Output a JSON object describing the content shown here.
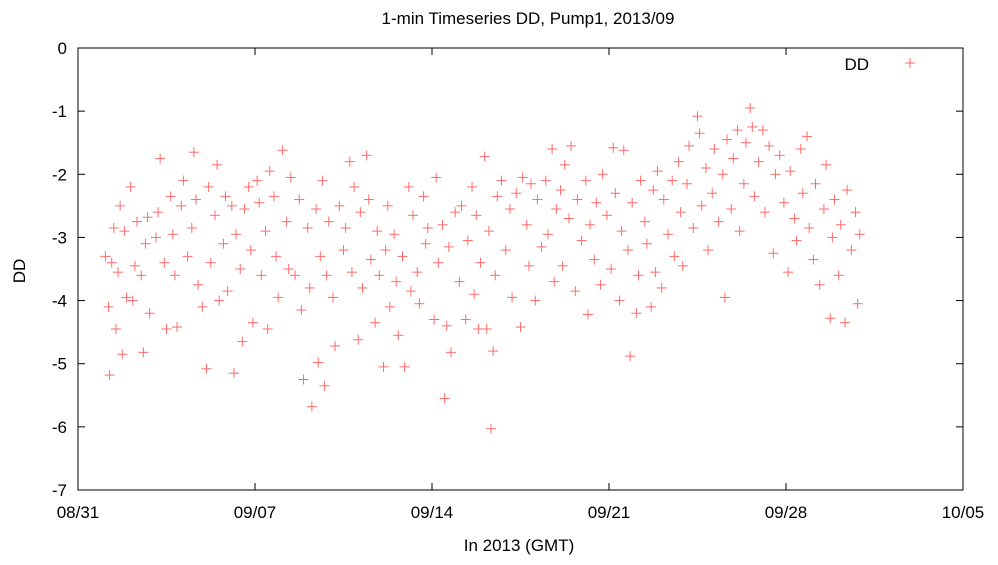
{
  "chart_data": {
    "type": "scatter",
    "title": "1-min Timeseries DD, Pump1, 2013/09",
    "xlabel": "In 2013 (GMT)",
    "ylabel": "DD",
    "xlim": [
      "2013-08-31",
      "2013-10-05"
    ],
    "ylim": [
      -7,
      0
    ],
    "x_ticks": [
      "08/31",
      "09/07",
      "09/14",
      "09/21",
      "09/28",
      "10/05"
    ],
    "y_ticks": [
      "0",
      "-1",
      "-2",
      "-3",
      "-4",
      "-5",
      "-6",
      "-7"
    ],
    "grid": false,
    "legend": {
      "position": "top-right",
      "entries": [
        "DD"
      ]
    },
    "marker": "+",
    "color": "#ff6a6a",
    "series": [
      {
        "name": "DD",
        "points": [
          [
            "2013-09-01T02:00",
            -3.3
          ],
          [
            "2013-09-01T05:00",
            -4.1
          ],
          [
            "2013-09-01T06:00",
            -5.18
          ],
          [
            "2013-09-01T08:00",
            -3.4
          ],
          [
            "2013-09-01T10:00",
            -2.85
          ],
          [
            "2013-09-01T12:00",
            -4.45
          ],
          [
            "2013-09-01T14:00",
            -3.55
          ],
          [
            "2013-09-01T16:00",
            -2.5
          ],
          [
            "2013-09-01T18:00",
            -4.85
          ],
          [
            "2013-09-01T20:00",
            -2.9
          ],
          [
            "2013-09-01T22:00",
            -3.95
          ],
          [
            "2013-09-02T02:00",
            -2.2
          ],
          [
            "2013-09-02T04:00",
            -4.0
          ],
          [
            "2013-09-02T06:00",
            -3.45
          ],
          [
            "2013-09-02T08:00",
            -2.75
          ],
          [
            "2013-09-02T12:00",
            -3.6
          ],
          [
            "2013-09-02T14:00",
            -4.82
          ],
          [
            "2013-09-02T16:00",
            -3.1
          ],
          [
            "2013-09-02T18:00",
            -2.68
          ],
          [
            "2013-09-02T20:00",
            -4.2
          ],
          [
            "2013-09-03T02:00",
            -3.0
          ],
          [
            "2013-09-03T04:00",
            -2.6
          ],
          [
            "2013-09-03T06:00",
            -1.75
          ],
          [
            "2013-09-03T10:00",
            -3.4
          ],
          [
            "2013-09-03T12:00",
            -4.45
          ],
          [
            "2013-09-03T16:00",
            -2.35
          ],
          [
            "2013-09-03T18:00",
            -2.95
          ],
          [
            "2013-09-03T20:00",
            -3.6
          ],
          [
            "2013-09-03T22:00",
            -4.42
          ],
          [
            "2013-09-04T02:00",
            -2.5
          ],
          [
            "2013-09-04T04:00",
            -2.1
          ],
          [
            "2013-09-04T08:00",
            -3.3
          ],
          [
            "2013-09-04T12:00",
            -2.85
          ],
          [
            "2013-09-04T14:00",
            -1.65
          ],
          [
            "2013-09-04T16:00",
            -2.4
          ],
          [
            "2013-09-04T18:00",
            -3.75
          ],
          [
            "2013-09-04T22:00",
            -4.1
          ],
          [
            "2013-09-05T02:00",
            -5.08
          ],
          [
            "2013-09-05T04:00",
            -2.2
          ],
          [
            "2013-09-05T06:00",
            -3.4
          ],
          [
            "2013-09-05T10:00",
            -2.65
          ],
          [
            "2013-09-05T12:00",
            -1.85
          ],
          [
            "2013-09-05T14:00",
            -4.0
          ],
          [
            "2013-09-05T18:00",
            -3.1
          ],
          [
            "2013-09-05T20:00",
            -2.35
          ],
          [
            "2013-09-05T22:00",
            -3.85
          ],
          [
            "2013-09-06T02:00",
            -2.5
          ],
          [
            "2013-09-06T04:00",
            -5.15
          ],
          [
            "2013-09-06T06:00",
            -2.95
          ],
          [
            "2013-09-06T10:00",
            -3.5
          ],
          [
            "2013-09-06T12:00",
            -4.65
          ],
          [
            "2013-09-06T14:00",
            -2.55
          ],
          [
            "2013-09-06T18:00",
            -2.2
          ],
          [
            "2013-09-06T20:00",
            -3.2
          ],
          [
            "2013-09-06T22:00",
            -4.35
          ],
          [
            "2013-09-07T02:00",
            -2.1
          ],
          [
            "2013-09-07T04:00",
            -2.45
          ],
          [
            "2013-09-07T06:00",
            -3.6
          ],
          [
            "2013-09-07T10:00",
            -2.9
          ],
          [
            "2013-09-07T12:00",
            -4.45
          ],
          [
            "2013-09-07T14:00",
            -1.95
          ],
          [
            "2013-09-07T18:00",
            -2.35
          ],
          [
            "2013-09-07T20:00",
            -3.3
          ],
          [
            "2013-09-07T22:00",
            -3.95
          ],
          [
            "2013-09-08T02:00",
            -1.62
          ],
          [
            "2013-09-08T06:00",
            -2.75
          ],
          [
            "2013-09-08T08:00",
            -3.5
          ],
          [
            "2013-09-08T10:00",
            -2.05
          ],
          [
            "2013-09-08T14:00",
            -3.6
          ],
          [
            "2013-09-08T18:00",
            -2.4
          ],
          [
            "2013-09-08T20:00",
            -4.15
          ],
          [
            "2013-09-08T22:00",
            -5.25
          ],
          [
            "2013-09-09T02:00",
            -2.85
          ],
          [
            "2013-09-09T04:00",
            -3.8
          ],
          [
            "2013-09-09T06:00",
            -5.68
          ],
          [
            "2013-09-09T10:00",
            -2.55
          ],
          [
            "2013-09-09T12:00",
            -4.98
          ],
          [
            "2013-09-09T14:00",
            -3.3
          ],
          [
            "2013-09-09T16:00",
            -2.1
          ],
          [
            "2013-09-09T18:00",
            -5.35
          ],
          [
            "2013-09-09T20:00",
            -3.6
          ],
          [
            "2013-09-09T22:00",
            -2.75
          ],
          [
            "2013-09-10T02:00",
            -3.95
          ],
          [
            "2013-09-10T04:00",
            -4.72
          ],
          [
            "2013-09-10T08:00",
            -2.5
          ],
          [
            "2013-09-10T12:00",
            -3.2
          ],
          [
            "2013-09-10T14:00",
            -2.85
          ],
          [
            "2013-09-10T18:00",
            -1.8
          ],
          [
            "2013-09-10T20:00",
            -3.55
          ],
          [
            "2013-09-10T22:00",
            -2.2
          ],
          [
            "2013-09-11T02:00",
            -4.62
          ],
          [
            "2013-09-11T04:00",
            -2.6
          ],
          [
            "2013-09-11T06:00",
            -3.8
          ],
          [
            "2013-09-11T10:00",
            -1.7
          ],
          [
            "2013-09-11T12:00",
            -2.4
          ],
          [
            "2013-09-11T14:00",
            -3.35
          ],
          [
            "2013-09-11T18:00",
            -4.35
          ],
          [
            "2013-09-11T20:00",
            -2.9
          ],
          [
            "2013-09-11T22:00",
            -3.6
          ],
          [
            "2013-09-12T02:00",
            -5.05
          ],
          [
            "2013-09-12T04:00",
            -3.2
          ],
          [
            "2013-09-12T06:00",
            -2.5
          ],
          [
            "2013-09-12T08:00",
            -4.1
          ],
          [
            "2013-09-12T12:00",
            -2.95
          ],
          [
            "2013-09-12T14:00",
            -3.7
          ],
          [
            "2013-09-12T16:00",
            -4.55
          ],
          [
            "2013-09-12T20:00",
            -3.3
          ],
          [
            "2013-09-12T22:00",
            -5.05
          ],
          [
            "2013-09-13T02:00",
            -2.2
          ],
          [
            "2013-09-13T04:00",
            -3.85
          ],
          [
            "2013-09-13T06:00",
            -2.65
          ],
          [
            "2013-09-13T10:00",
            -3.55
          ],
          [
            "2013-09-13T12:00",
            -4.05
          ],
          [
            "2013-09-13T16:00",
            -2.35
          ],
          [
            "2013-09-13T18:00",
            -3.1
          ],
          [
            "2013-09-13T20:00",
            -2.85
          ],
          [
            "2013-09-14T02:00",
            -4.3
          ],
          [
            "2013-09-14T04:00",
            -2.05
          ],
          [
            "2013-09-14T06:00",
            -3.4
          ],
          [
            "2013-09-14T10:00",
            -2.8
          ],
          [
            "2013-09-14T12:00",
            -5.55
          ],
          [
            "2013-09-14T14:00",
            -4.4
          ],
          [
            "2013-09-14T16:00",
            -3.15
          ],
          [
            "2013-09-14T18:00",
            -4.82
          ],
          [
            "2013-09-14T22:00",
            -2.6
          ],
          [
            "2013-09-15T02:00",
            -3.7
          ],
          [
            "2013-09-15T04:00",
            -2.5
          ],
          [
            "2013-09-15T08:00",
            -4.3
          ],
          [
            "2013-09-15T10:00",
            -3.05
          ],
          [
            "2013-09-15T14:00",
            -2.2
          ],
          [
            "2013-09-15T16:00",
            -3.9
          ],
          [
            "2013-09-15T18:00",
            -2.65
          ],
          [
            "2013-09-15T20:00",
            -4.45
          ],
          [
            "2013-09-15T22:00",
            -3.4
          ],
          [
            "2013-09-16T02:00",
            -1.72
          ],
          [
            "2013-09-16T04:00",
            -4.45
          ],
          [
            "2013-09-16T06:00",
            -2.9
          ],
          [
            "2013-09-16T08:00",
            -6.03
          ],
          [
            "2013-09-16T10:00",
            -4.8
          ],
          [
            "2013-09-16T12:00",
            -3.6
          ],
          [
            "2013-09-16T14:00",
            -2.35
          ],
          [
            "2013-09-16T18:00",
            -2.1
          ],
          [
            "2013-09-16T22:00",
            -3.2
          ],
          [
            "2013-09-17T02:00",
            -2.55
          ],
          [
            "2013-09-17T04:00",
            -3.95
          ],
          [
            "2013-09-17T08:00",
            -2.3
          ],
          [
            "2013-09-17T12:00",
            -4.42
          ],
          [
            "2013-09-17T14:00",
            -2.05
          ],
          [
            "2013-09-17T18:00",
            -2.8
          ],
          [
            "2013-09-17T20:00",
            -3.45
          ],
          [
            "2013-09-17T22:00",
            -2.15
          ],
          [
            "2013-09-18T02:00",
            -4.0
          ],
          [
            "2013-09-18T04:00",
            -2.4
          ],
          [
            "2013-09-18T08:00",
            -3.15
          ],
          [
            "2013-09-18T12:00",
            -2.1
          ],
          [
            "2013-09-18T14:00",
            -2.95
          ],
          [
            "2013-09-18T18:00",
            -1.6
          ],
          [
            "2013-09-18T20:00",
            -3.7
          ],
          [
            "2013-09-18T22:00",
            -2.55
          ],
          [
            "2013-09-19T02:00",
            -2.25
          ],
          [
            "2013-09-19T04:00",
            -3.45
          ],
          [
            "2013-09-19T06:00",
            -1.85
          ],
          [
            "2013-09-19T10:00",
            -2.7
          ],
          [
            "2013-09-19T12:00",
            -1.55
          ],
          [
            "2013-09-19T16:00",
            -3.85
          ],
          [
            "2013-09-19T18:00",
            -2.4
          ],
          [
            "2013-09-19T22:00",
            -3.05
          ],
          [
            "2013-09-20T02:00",
            -2.1
          ],
          [
            "2013-09-20T04:00",
            -4.22
          ],
          [
            "2013-09-20T06:00",
            -2.8
          ],
          [
            "2013-09-20T10:00",
            -3.35
          ],
          [
            "2013-09-20T12:00",
            -2.45
          ],
          [
            "2013-09-20T16:00",
            -3.75
          ],
          [
            "2013-09-20T18:00",
            -2.0
          ],
          [
            "2013-09-20T22:00",
            -2.65
          ],
          [
            "2013-09-21T02:00",
            -3.5
          ],
          [
            "2013-09-21T04:00",
            -1.58
          ],
          [
            "2013-09-21T06:00",
            -2.3
          ],
          [
            "2013-09-21T10:00",
            -4.0
          ],
          [
            "2013-09-21T12:00",
            -2.9
          ],
          [
            "2013-09-21T14:00",
            -1.62
          ],
          [
            "2013-09-21T18:00",
            -3.2
          ],
          [
            "2013-09-21T20:00",
            -4.88
          ],
          [
            "2013-09-21T22:00",
            -2.45
          ],
          [
            "2013-09-22T02:00",
            -4.2
          ],
          [
            "2013-09-22T04:00",
            -3.6
          ],
          [
            "2013-09-22T06:00",
            -2.1
          ],
          [
            "2013-09-22T10:00",
            -2.75
          ],
          [
            "2013-09-22T12:00",
            -3.1
          ],
          [
            "2013-09-22T16:00",
            -4.1
          ],
          [
            "2013-09-22T18:00",
            -2.25
          ],
          [
            "2013-09-22T20:00",
            -3.55
          ],
          [
            "2013-09-22T22:00",
            -1.95
          ],
          [
            "2013-09-23T02:00",
            -3.8
          ],
          [
            "2013-09-23T04:00",
            -2.4
          ],
          [
            "2013-09-23T08:00",
            -2.95
          ],
          [
            "2013-09-23T12:00",
            -2.1
          ],
          [
            "2013-09-23T14:00",
            -3.3
          ],
          [
            "2013-09-23T18:00",
            -1.8
          ],
          [
            "2013-09-23T20:00",
            -2.6
          ],
          [
            "2013-09-23T22:00",
            -3.45
          ],
          [
            "2013-09-24T02:00",
            -2.15
          ],
          [
            "2013-09-24T04:00",
            -1.55
          ],
          [
            "2013-09-24T08:00",
            -2.85
          ],
          [
            "2013-09-24T12:00",
            -1.08
          ],
          [
            "2013-09-24T14:00",
            -1.35
          ],
          [
            "2013-09-24T16:00",
            -2.5
          ],
          [
            "2013-09-24T20:00",
            -1.9
          ],
          [
            "2013-09-24T22:00",
            -3.2
          ],
          [
            "2013-09-25T02:00",
            -2.3
          ],
          [
            "2013-09-25T04:00",
            -1.6
          ],
          [
            "2013-09-25T08:00",
            -2.75
          ],
          [
            "2013-09-25T12:00",
            -2.0
          ],
          [
            "2013-09-25T14:00",
            -3.95
          ],
          [
            "2013-09-25T16:00",
            -1.45
          ],
          [
            "2013-09-25T20:00",
            -2.55
          ],
          [
            "2013-09-25T22:00",
            -1.75
          ],
          [
            "2013-09-26T02:00",
            -1.3
          ],
          [
            "2013-09-26T04:00",
            -2.9
          ],
          [
            "2013-09-26T08:00",
            -2.15
          ],
          [
            "2013-09-26T10:00",
            -1.5
          ],
          [
            "2013-09-26T14:00",
            -0.95
          ],
          [
            "2013-09-26T16:00",
            -1.25
          ],
          [
            "2013-09-26T18:00",
            -2.35
          ],
          [
            "2013-09-26T22:00",
            -1.8
          ],
          [
            "2013-09-27T02:00",
            -1.3
          ],
          [
            "2013-09-27T04:00",
            -2.6
          ],
          [
            "2013-09-27T08:00",
            -1.55
          ],
          [
            "2013-09-27T12:00",
            -3.25
          ],
          [
            "2013-09-27T14:00",
            -2.0
          ],
          [
            "2013-09-27T18:00",
            -1.7
          ],
          [
            "2013-09-27T22:00",
            -2.45
          ],
          [
            "2013-09-28T02:00",
            -3.55
          ],
          [
            "2013-09-28T04:00",
            -1.95
          ],
          [
            "2013-09-28T08:00",
            -2.7
          ],
          [
            "2013-09-28T10:00",
            -3.05
          ],
          [
            "2013-09-28T14:00",
            -1.6
          ],
          [
            "2013-09-28T16:00",
            -2.3
          ],
          [
            "2013-09-28T20:00",
            -1.4
          ],
          [
            "2013-09-28T22:00",
            -2.85
          ],
          [
            "2013-09-29T02:00",
            -3.35
          ],
          [
            "2013-09-29T04:00",
            -2.15
          ],
          [
            "2013-09-29T08:00",
            -3.75
          ],
          [
            "2013-09-29T12:00",
            -2.55
          ],
          [
            "2013-09-29T14:00",
            -1.85
          ],
          [
            "2013-09-29T18:00",
            -4.28
          ],
          [
            "2013-09-29T20:00",
            -3.0
          ],
          [
            "2013-09-29T22:00",
            -2.4
          ],
          [
            "2013-09-30T02:00",
            -3.6
          ],
          [
            "2013-09-30T04:00",
            -2.8
          ],
          [
            "2013-09-30T08:00",
            -4.35
          ],
          [
            "2013-09-30T10:00",
            -2.25
          ],
          [
            "2013-09-30T14:00",
            -3.2
          ],
          [
            "2013-09-30T18:00",
            -2.6
          ],
          [
            "2013-09-30T20:00",
            -4.05
          ],
          [
            "2013-09-30T22:00",
            -2.95
          ]
        ]
      }
    ]
  }
}
